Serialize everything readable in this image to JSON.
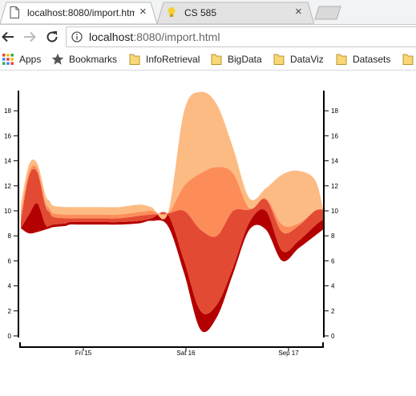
{
  "browser": {
    "tabs": [
      {
        "title": "localhost:8080/import.htm",
        "active": true,
        "icon": "page-icon"
      },
      {
        "title": "CS 585",
        "active": false,
        "icon": "bulb-icon"
      }
    ],
    "url": {
      "host": "localhost",
      "rest": ":8080/import.html"
    },
    "bookmarks": [
      {
        "label": "Apps",
        "icon": "apps-grid-icon"
      },
      {
        "label": "Bookmarks",
        "icon": "star-icon"
      },
      {
        "label": "InfoRetrieval",
        "icon": "folder-icon"
      },
      {
        "label": "BigData",
        "icon": "folder-icon"
      },
      {
        "label": "DataViz",
        "icon": "folder-icon"
      },
      {
        "label": "Datasets",
        "icon": "folder-icon"
      }
    ]
  },
  "chart_data": {
    "type": "area",
    "subtype": "stacked-streamgraph",
    "x_ticks": [
      "Fri 15",
      "Sat 16",
      "Sep 17"
    ],
    "y_ticks": [
      0,
      2,
      4,
      6,
      8,
      10,
      12,
      14,
      16,
      18
    ],
    "ylim": [
      0,
      19.5
    ],
    "x": [
      0,
      2,
      4,
      6,
      7,
      8,
      11,
      12,
      14,
      16,
      20,
      24,
      29,
      32,
      36,
      40,
      44,
      48,
      52,
      56,
      60,
      64,
      68,
      72,
      74
    ],
    "baseline": [
      8.6,
      8.2,
      8.3,
      8.5,
      8.6,
      8.7,
      8.8,
      8.9,
      8.9,
      8.9,
      8.9,
      8.9,
      9.0,
      9.2,
      8.8,
      5.0,
      0.5,
      1.5,
      5.0,
      8.5,
      8.5,
      6.0,
      7.0,
      8.0,
      8.5
    ],
    "series": [
      {
        "values": [
          0.0,
          1.5,
          2.3,
          0.4,
          0.2,
          0.2,
          0.2,
          0.2,
          0.2,
          0.2,
          0.2,
          0.2,
          0.2,
          0.2,
          0.9,
          1.0,
          1.5,
          1.0,
          0.5,
          0.6,
          1.5,
          0.8,
          0.6,
          0.8,
          0.8
        ],
        "color": "#b30000"
      },
      {
        "values": [
          0.6,
          3.1,
          2.5,
          1.5,
          1.1,
          0.6,
          0.4,
          0.3,
          0.3,
          0.3,
          0.3,
          0.3,
          0.4,
          0.3,
          0.1,
          4.0,
          6.5,
          5.5,
          4.5,
          1.0,
          0.9,
          1.5,
          1.2,
          1.2,
          0.8
        ],
        "color": "#e34a33"
      },
      {
        "values": [
          0.5,
          0.3,
          0.3,
          0.3,
          0.3,
          0.3,
          0.3,
          0.3,
          0.3,
          0.3,
          0.3,
          0.3,
          0.3,
          0.3,
          0.0,
          2.0,
          4.5,
          5.5,
          3.0,
          0.1,
          0.1,
          0.6,
          0.2,
          0.0,
          0.0
        ],
        "color": "#fc8d59"
      },
      {
        "values": [
          0.8,
          0.6,
          0.4,
          0.6,
          0.6,
          0.6,
          0.6,
          0.6,
          0.6,
          0.6,
          0.6,
          0.6,
          0.6,
          0.3,
          0.0,
          6.0,
          6.5,
          5.0,
          2.0,
          0.8,
          0.8,
          4.0,
          4.2,
          2.5,
          0.1
        ],
        "color": "#fdbb84"
      }
    ]
  }
}
